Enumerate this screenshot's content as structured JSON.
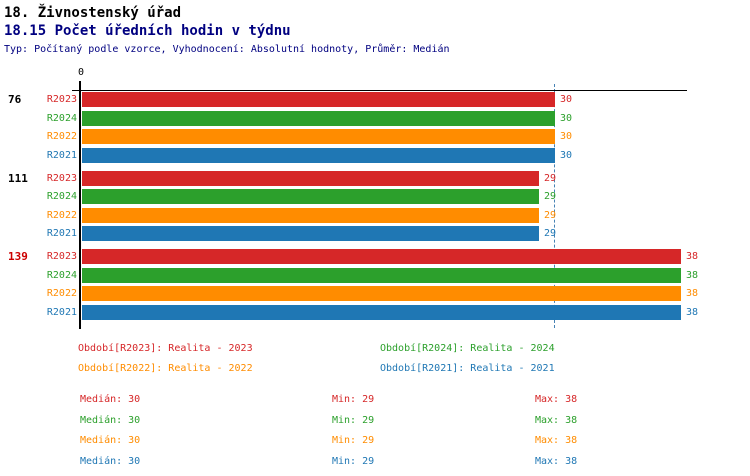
{
  "header": {
    "title": "18. Živnostenský úřad",
    "subtitle": "18.15 Počet úředních hodin v týdnu",
    "meta": "Typ: Počítaný podle vzorce, Vyhodnocení: Absolutní hodnoty, Průměr: Medián"
  },
  "colors": {
    "red": "#D62728",
    "green": "#2CA02C",
    "orange": "#FF8C00",
    "blue": "#1F77B4",
    "axis": "#000000",
    "median_line": "#4682B4",
    "navy_text": "#000080",
    "highlight_group_label": "#CC0000"
  },
  "chart_data": {
    "type": "bar",
    "orientation": "horizontal",
    "x_origin_label": "0",
    "axis_min": 0,
    "axis_max": 38.5,
    "grid": false,
    "median_value": 30,
    "categories": [
      "76",
      "111",
      "139"
    ],
    "category_label_colors": [
      "#000000",
      "#000000",
      "#CC0000"
    ],
    "series": [
      {
        "name": "R2023",
        "color": "#D62728",
        "values": [
          30,
          29,
          38
        ]
      },
      {
        "name": "R2024",
        "color": "#2CA02C",
        "values": [
          30,
          29,
          38
        ]
      },
      {
        "name": "R2022",
        "color": "#FF8C00",
        "values": [
          30,
          29,
          38
        ]
      },
      {
        "name": "R2021",
        "color": "#1F77B4",
        "values": [
          30,
          29,
          38
        ]
      }
    ]
  },
  "legend": {
    "rows": [
      [
        {
          "text": "Období[R2023]: Realita - 2023",
          "color": "#D62728"
        },
        {
          "text": "Období[R2024]: Realita - 2024",
          "color": "#2CA02C"
        }
      ],
      [
        {
          "text": "Období[R2022]: Realita - 2022",
          "color": "#FF8C00"
        },
        {
          "text": "Období[R2021]: Realita - 2021",
          "color": "#1F77B4"
        }
      ]
    ]
  },
  "stats": {
    "rows": [
      {
        "color": "#D62728",
        "cells": [
          "Medián: 30",
          "Min: 29",
          "Max: 38"
        ]
      },
      {
        "color": "#2CA02C",
        "cells": [
          "Medián: 30",
          "Min: 29",
          "Max: 38"
        ]
      },
      {
        "color": "#FF8C00",
        "cells": [
          "Medián: 30",
          "Min: 29",
          "Max: 38"
        ]
      },
      {
        "color": "#1F77B4",
        "cells": [
          "Medián: 30",
          "Min: 29",
          "Max: 38"
        ]
      }
    ]
  }
}
